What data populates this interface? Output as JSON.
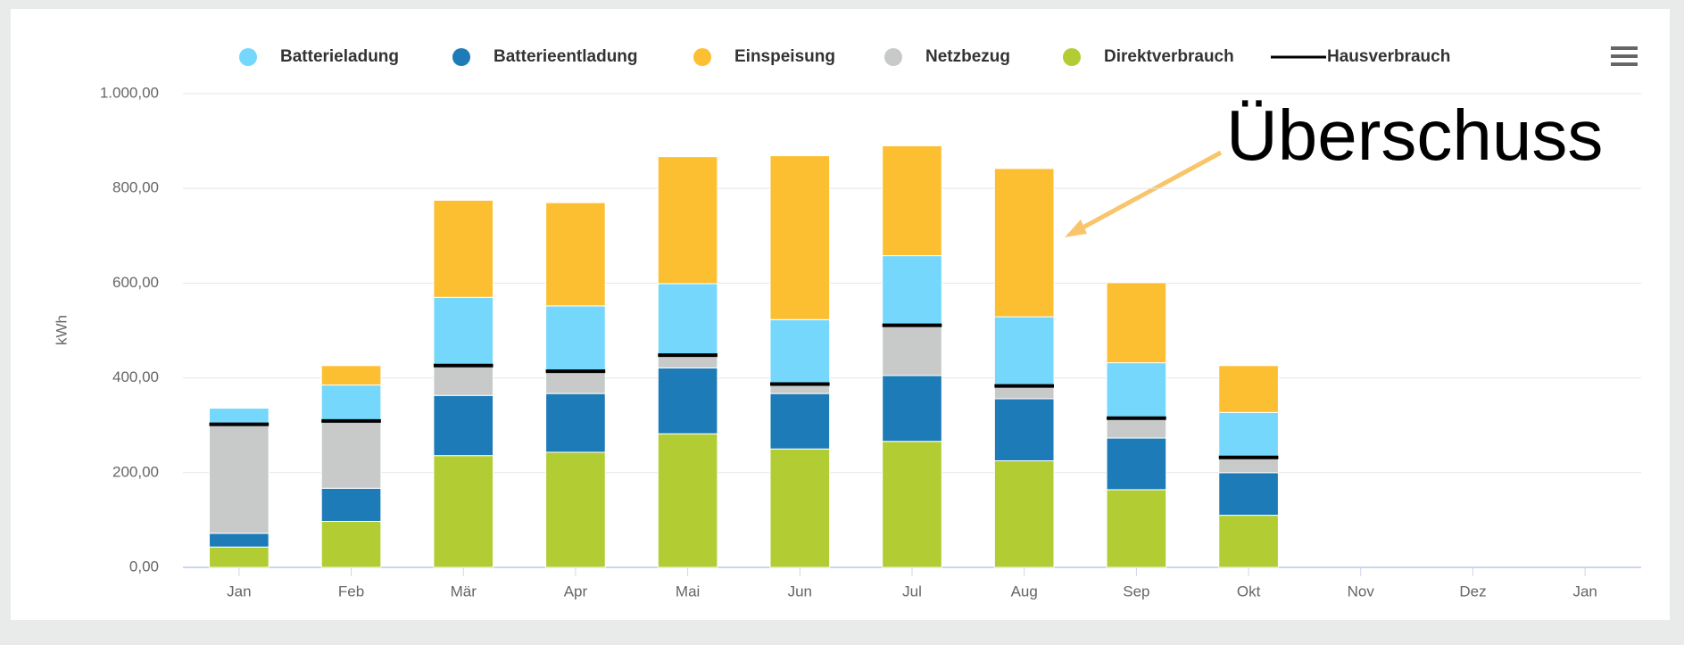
{
  "chart_data": {
    "type": "bar",
    "stacked": true,
    "y_label": "kWh",
    "annotation": "Überschuss",
    "categories": [
      "Jan",
      "Feb",
      "Mär",
      "Apr",
      "Mai",
      "Jun",
      "Jul",
      "Aug",
      "Sep",
      "Okt",
      "Nov",
      "Dez",
      "Jan"
    ],
    "series": [
      {
        "name": "Direktverbrauch",
        "color": "#b2cc34",
        "values": [
          43,
          97,
          236,
          243,
          282,
          250,
          266,
          225,
          164,
          110,
          null,
          null,
          null
        ]
      },
      {
        "name": "Batterieentladung",
        "color": "#1d7bb7",
        "values": [
          29,
          70,
          127,
          124,
          139,
          117,
          139,
          131,
          109,
          90,
          null,
          null,
          null
        ]
      },
      {
        "name": "Netzbezug",
        "color": "#c8cac9",
        "values": [
          230,
          142,
          63,
          47,
          27,
          20,
          106,
          27,
          42,
          32,
          null,
          null,
          null
        ]
      },
      {
        "name": "Batterieladung",
        "color": "#74d7fb",
        "values": [
          34,
          76,
          144,
          138,
          151,
          136,
          147,
          146,
          117,
          95,
          null,
          null,
          null
        ]
      },
      {
        "name": "Einspeisung",
        "color": "#fdbf32",
        "values": [
          0,
          41,
          205,
          218,
          268,
          346,
          232,
          313,
          169,
          99,
          null,
          null,
          null
        ]
      },
      {
        "name": "Hausverbrauch",
        "color": "#000000",
        "type": "line",
        "values": [
          302,
          309,
          426,
          414,
          448,
          387,
          511,
          383,
          315,
          232,
          null,
          null,
          null
        ]
      }
    ],
    "legend_order": [
      3,
      1,
      4,
      2,
      0,
      5
    ],
    "ylim": [
      0,
      1000
    ],
    "yticks": [
      {
        "value": 0,
        "label": "0,00"
      },
      {
        "value": 200,
        "label": "200,00"
      },
      {
        "value": 400,
        "label": "400,00"
      },
      {
        "value": 600,
        "label": "600,00"
      },
      {
        "value": 800,
        "label": "800,00"
      },
      {
        "value": 1000,
        "label": "1.000,00"
      }
    ],
    "grid": true
  }
}
